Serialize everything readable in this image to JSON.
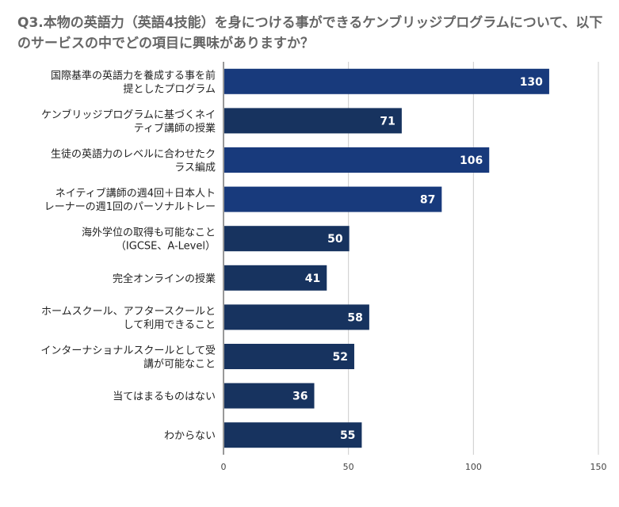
{
  "chart_data": {
    "type": "bar",
    "orientation": "horizontal",
    "title": "Q3.本物の英語力（英語4技能）を身につける事ができるケンブリッジプログラムについて、以下のサービスの中でどの項目に興味がありますか？",
    "categories": [
      [
        "国際基準の英語力を養成する事を前",
        "提としたプログラム"
      ],
      [
        "ケンブリッジプログラムに基づくネイ",
        "ティブ講師の授業"
      ],
      [
        "生徒の英語力のレベルに合わせたク",
        "ラス編成"
      ],
      [
        "ネイティブ講師の週4回＋日本人ト",
        "レーナーの週1回のパーソナルトレー"
      ],
      [
        "海外学位の取得も可能なこと",
        "（IGCSE、A-Level）"
      ],
      [
        "完全オンラインの授業"
      ],
      [
        "ホームスクール、アフタースクールと",
        "して利用できること"
      ],
      [
        "インターナショナルスクールとして受",
        "講が可能なこと"
      ],
      [
        "当てはまるものはない"
      ],
      [
        "わからない"
      ]
    ],
    "values": [
      130,
      71,
      106,
      87,
      50,
      41,
      58,
      52,
      36,
      55
    ],
    "xlim": [
      0,
      150
    ],
    "xticks": [
      0,
      50,
      100,
      150
    ],
    "grid": true,
    "colors": {
      "bar_primary": "#183a7c",
      "bar_secondary": "#17335f",
      "grid": "#cccccc",
      "axis": "#333333"
    },
    "bar_color_index": [
      0,
      1,
      0,
      0,
      1,
      1,
      1,
      1,
      1,
      1
    ]
  }
}
